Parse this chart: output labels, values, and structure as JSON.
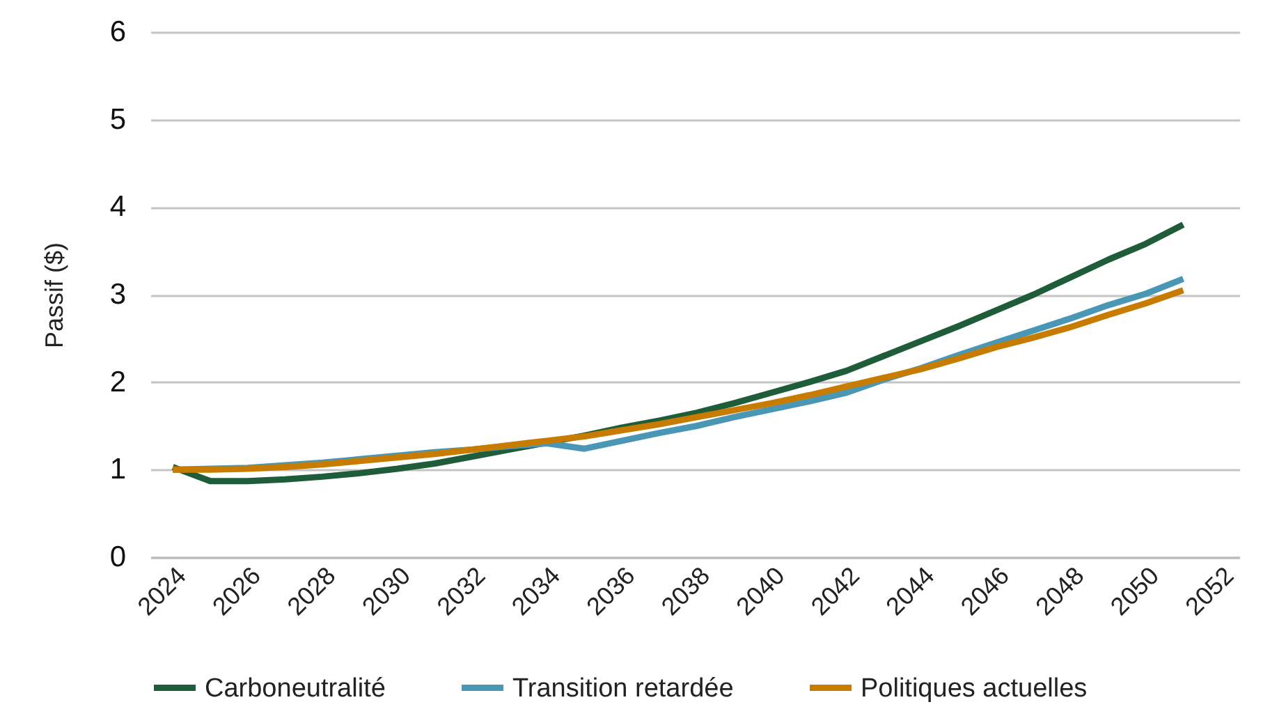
{
  "chart_data": {
    "type": "line",
    "ylabel": "Passif ($)",
    "x": [
      2024,
      2025,
      2026,
      2027,
      2028,
      2029,
      2030,
      2031,
      2032,
      2033,
      2034,
      2035,
      2036,
      2037,
      2038,
      2039,
      2040,
      2041,
      2042,
      2043,
      2044,
      2045,
      2046,
      2047,
      2048,
      2049,
      2050,
      2051
    ],
    "series": [
      {
        "name": "Carboneutralité",
        "color": "#1e5c3a",
        "values": [
          1.03,
          0.87,
          0.87,
          0.89,
          0.92,
          0.96,
          1.01,
          1.07,
          1.15,
          1.23,
          1.31,
          1.39,
          1.48,
          1.56,
          1.65,
          1.76,
          1.88,
          2.0,
          2.13,
          2.3,
          2.47,
          2.64,
          2.82,
          3.0,
          3.2,
          3.4,
          3.58,
          3.8
        ]
      },
      {
        "name": "Transition retardée",
        "color": "#4a96b5",
        "values": [
          1.0,
          1.01,
          1.02,
          1.05,
          1.08,
          1.12,
          1.16,
          1.2,
          1.23,
          1.27,
          1.3,
          1.24,
          1.33,
          1.42,
          1.5,
          1.6,
          1.69,
          1.78,
          1.88,
          2.03,
          2.16,
          2.31,
          2.45,
          2.59,
          2.73,
          2.88,
          3.01,
          3.18
        ]
      },
      {
        "name": "Politiques actuelles",
        "color": "#c77c00",
        "values": [
          1.0,
          1.0,
          1.01,
          1.03,
          1.06,
          1.1,
          1.14,
          1.18,
          1.23,
          1.28,
          1.33,
          1.38,
          1.45,
          1.52,
          1.6,
          1.68,
          1.76,
          1.85,
          1.95,
          2.05,
          2.15,
          2.27,
          2.4,
          2.51,
          2.63,
          2.77,
          2.9,
          3.05
        ]
      }
    ],
    "xlim": [
      2023.4,
      2052.5
    ],
    "xticks": [
      2024,
      2026,
      2028,
      2030,
      2032,
      2034,
      2036,
      2038,
      2040,
      2042,
      2044,
      2046,
      2048,
      2050,
      2052
    ],
    "ylim": [
      0,
      6
    ],
    "yticks": [
      0,
      1,
      2,
      3,
      4,
      5,
      6
    ],
    "grid": "y",
    "legend": "bottom",
    "line_style": "solid",
    "marker": "none"
  }
}
